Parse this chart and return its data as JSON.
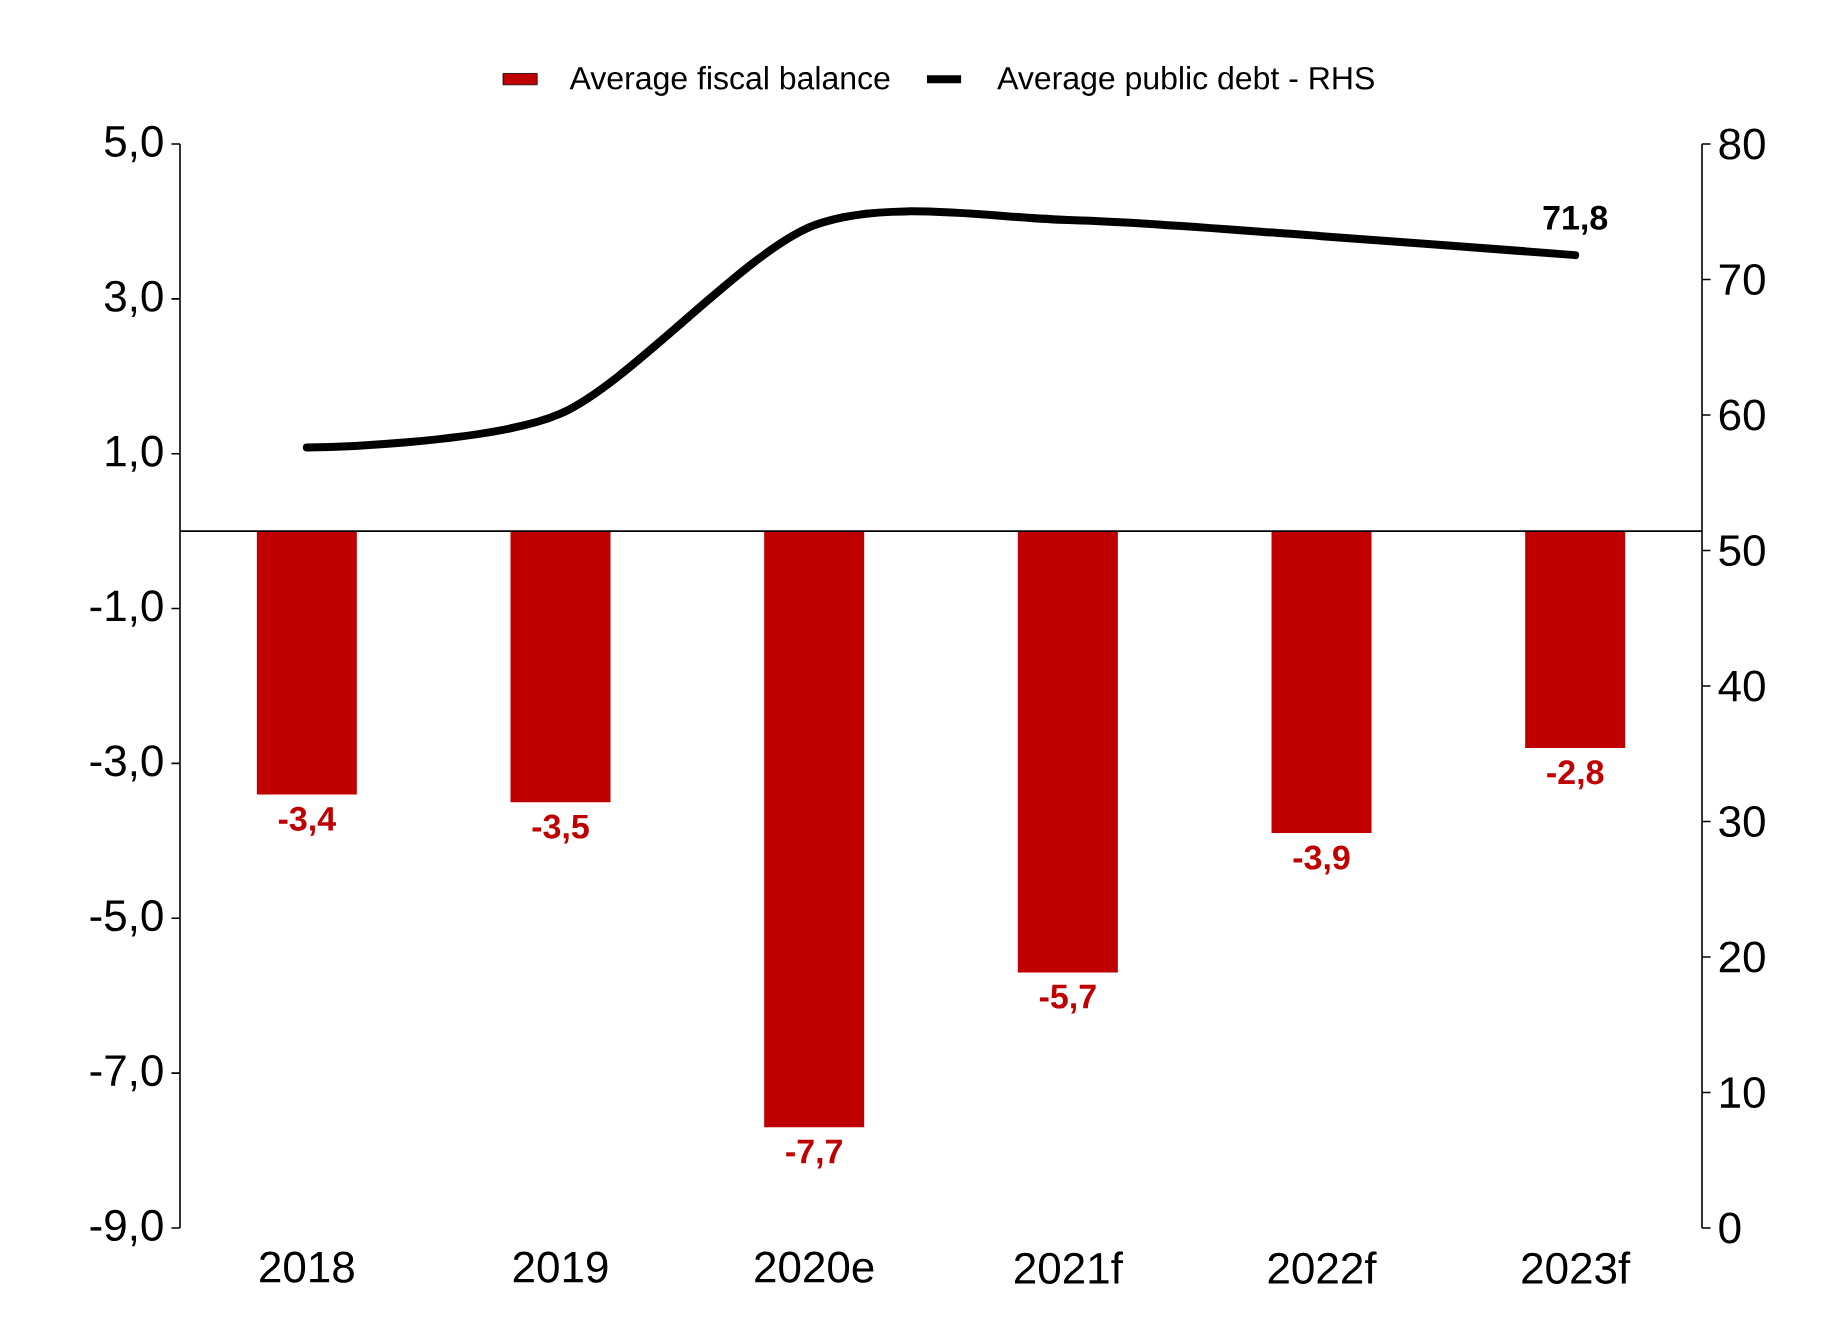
{
  "chart_data": {
    "type": "bar",
    "categories": [
      "2018",
      "2019",
      "2020e",
      "2021f",
      "2022f",
      "2023f"
    ],
    "series": [
      {
        "name": "Average fiscal balance",
        "color": "#c00000",
        "values": [
          -3.4,
          -3.5,
          -7.7,
          -5.7,
          -3.9,
          -2.8
        ],
        "value_labels": [
          "-3,4",
          "-3,5",
          "-7,7",
          "-5,7",
          "-3,9",
          "-2,8"
        ]
      },
      {
        "name": "Average public debt - RHS",
        "type": "line",
        "axis": "y2",
        "color": "#000000",
        "values": [
          57.6,
          60.1,
          74.0,
          74.4,
          73.2,
          71.8
        ],
        "value_labels": [
          null,
          null,
          null,
          null,
          null,
          "71,8"
        ]
      }
    ],
    "ylim": [
      -9,
      5
    ],
    "yticks": [
      {
        "value": -9,
        "label": "-9,0"
      },
      {
        "value": -7,
        "label": "-7,0"
      },
      {
        "value": -5,
        "label": "-5,0"
      },
      {
        "value": -3,
        "label": "-3,0"
      },
      {
        "value": -1,
        "label": "-1,0"
      },
      {
        "value": 1,
        "label": "1,0"
      },
      {
        "value": 3,
        "label": "3,0"
      },
      {
        "value": 5,
        "label": "5,0"
      }
    ],
    "y2lim": [
      0,
      80
    ],
    "y2ticks": [
      0,
      10,
      20,
      30,
      40,
      50,
      60,
      70,
      80
    ],
    "legend": "top"
  }
}
